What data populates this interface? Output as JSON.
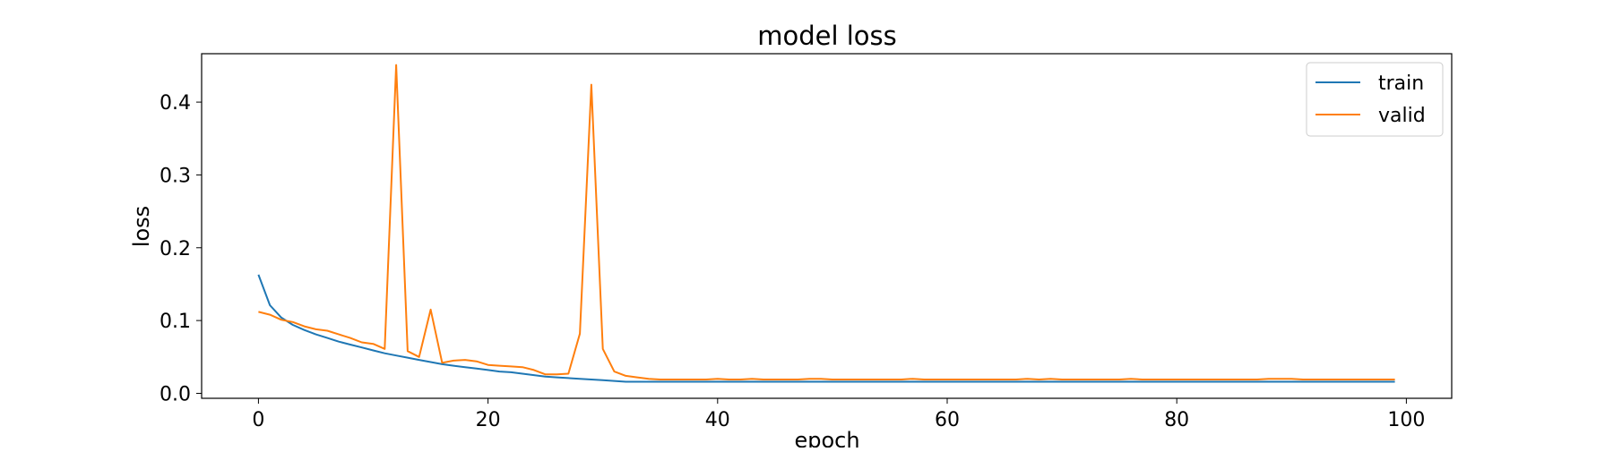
{
  "chart_data": {
    "type": "line",
    "title": "model loss",
    "xlabel": "epoch",
    "ylabel": "loss",
    "xlim": [
      -4.95,
      103.95
    ],
    "ylim": [
      -0.0068,
      0.4665
    ],
    "xticks": [
      0,
      20,
      40,
      60,
      80,
      100
    ],
    "xtick_labels": [
      "0",
      "20",
      "40",
      "60",
      "80",
      "100"
    ],
    "yticks": [
      0.0,
      0.1,
      0.2,
      0.3,
      0.4
    ],
    "ytick_labels": [
      "0.0",
      "0.1",
      "0.2",
      "0.3",
      "0.4"
    ],
    "grid": false,
    "legend_position": "top-right",
    "series": [
      {
        "name": "train",
        "color": "#1f77b4",
        "x": [
          0,
          1,
          2,
          3,
          4,
          5,
          6,
          7,
          8,
          9,
          10,
          11,
          12,
          13,
          14,
          15,
          16,
          17,
          18,
          19,
          20,
          21,
          22,
          23,
          24,
          25,
          26,
          27,
          28,
          29,
          30,
          31,
          32,
          33,
          34,
          35,
          36,
          37,
          38,
          39,
          40,
          41,
          42,
          43,
          44,
          45,
          46,
          47,
          48,
          49,
          50,
          51,
          52,
          53,
          54,
          55,
          56,
          57,
          58,
          59,
          60,
          61,
          62,
          63,
          64,
          65,
          66,
          67,
          68,
          69,
          70,
          71,
          72,
          73,
          74,
          75,
          76,
          77,
          78,
          79,
          80,
          81,
          82,
          83,
          84,
          85,
          86,
          87,
          88,
          89,
          90,
          91,
          92,
          93,
          94,
          95,
          96,
          97,
          98,
          99
        ],
        "values": [
          0.163,
          0.121,
          0.104,
          0.094,
          0.087,
          0.081,
          0.076,
          0.071,
          0.067,
          0.063,
          0.059,
          0.055,
          0.052,
          0.049,
          0.046,
          0.043,
          0.04,
          0.038,
          0.036,
          0.034,
          0.032,
          0.03,
          0.029,
          0.027,
          0.025,
          0.023,
          0.022,
          0.021,
          0.02,
          0.019,
          0.018,
          0.017,
          0.016,
          0.016,
          0.016,
          0.016,
          0.016,
          0.016,
          0.016,
          0.016,
          0.016,
          0.016,
          0.016,
          0.016,
          0.016,
          0.016,
          0.016,
          0.016,
          0.016,
          0.016,
          0.016,
          0.016,
          0.016,
          0.016,
          0.016,
          0.016,
          0.016,
          0.016,
          0.016,
          0.016,
          0.016,
          0.016,
          0.016,
          0.016,
          0.016,
          0.016,
          0.016,
          0.016,
          0.016,
          0.016,
          0.016,
          0.016,
          0.016,
          0.016,
          0.016,
          0.016,
          0.016,
          0.016,
          0.016,
          0.016,
          0.016,
          0.016,
          0.016,
          0.016,
          0.016,
          0.016,
          0.016,
          0.016,
          0.016,
          0.016,
          0.016,
          0.016,
          0.016,
          0.016,
          0.016,
          0.016,
          0.016,
          0.016,
          0.016,
          0.016
        ]
      },
      {
        "name": "valid",
        "color": "#ff7f0e",
        "x": [
          0,
          1,
          2,
          3,
          4,
          5,
          6,
          7,
          8,
          9,
          10,
          11,
          12,
          13,
          14,
          15,
          16,
          17,
          18,
          19,
          20,
          21,
          22,
          23,
          24,
          25,
          26,
          27,
          28,
          29,
          30,
          31,
          32,
          33,
          34,
          35,
          36,
          37,
          38,
          39,
          40,
          41,
          42,
          43,
          44,
          45,
          46,
          47,
          48,
          49,
          50,
          51,
          52,
          53,
          54,
          55,
          56,
          57,
          58,
          59,
          60,
          61,
          62,
          63,
          64,
          65,
          66,
          67,
          68,
          69,
          70,
          71,
          72,
          73,
          74,
          75,
          76,
          77,
          78,
          79,
          80,
          81,
          82,
          83,
          84,
          85,
          86,
          87,
          88,
          89,
          90,
          91,
          92,
          93,
          94,
          95,
          96,
          97,
          98,
          99
        ],
        "values": [
          0.112,
          0.108,
          0.101,
          0.098,
          0.092,
          0.088,
          0.086,
          0.081,
          0.076,
          0.07,
          0.068,
          0.061,
          0.451,
          0.058,
          0.05,
          0.115,
          0.042,
          0.045,
          0.046,
          0.044,
          0.039,
          0.038,
          0.037,
          0.036,
          0.032,
          0.026,
          0.026,
          0.027,
          0.082,
          0.424,
          0.061,
          0.03,
          0.024,
          0.022,
          0.02,
          0.019,
          0.019,
          0.019,
          0.019,
          0.019,
          0.02,
          0.019,
          0.019,
          0.02,
          0.019,
          0.019,
          0.019,
          0.019,
          0.02,
          0.02,
          0.019,
          0.019,
          0.019,
          0.019,
          0.019,
          0.019,
          0.019,
          0.02,
          0.019,
          0.019,
          0.019,
          0.019,
          0.019,
          0.019,
          0.019,
          0.019,
          0.019,
          0.02,
          0.019,
          0.02,
          0.019,
          0.019,
          0.019,
          0.019,
          0.019,
          0.019,
          0.02,
          0.019,
          0.019,
          0.019,
          0.019,
          0.019,
          0.019,
          0.019,
          0.019,
          0.019,
          0.019,
          0.019,
          0.02,
          0.02,
          0.02,
          0.019,
          0.019,
          0.019,
          0.019,
          0.019,
          0.019,
          0.019,
          0.019,
          0.019
        ]
      }
    ]
  }
}
